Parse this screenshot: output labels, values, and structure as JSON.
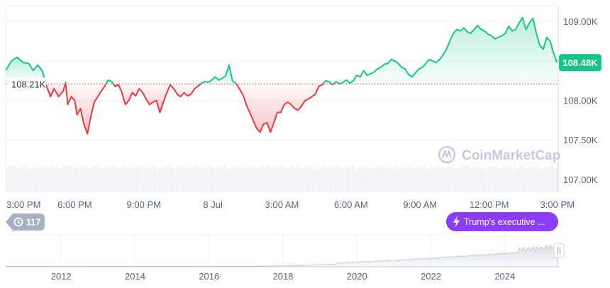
{
  "chart_data": {
    "type": "line",
    "y_axis": {
      "ticks": [
        "109.00K",
        "108.50K",
        "108.00K",
        "107.50K",
        "107.00K"
      ],
      "tick_values": [
        109000,
        108500,
        108000,
        107500,
        107000
      ],
      "ylim": [
        106850,
        109200
      ]
    },
    "x_axis": {
      "ticks": [
        "3:00 PM",
        "6:00 PM",
        "9:00 PM",
        "8 Jul",
        "3:00 AM",
        "6:00 AM",
        "9:00 AM",
        "12:00 PM",
        "3:00 PM"
      ],
      "tick_hours": [
        0,
        3,
        6,
        9,
        12,
        15,
        18,
        21,
        24
      ]
    },
    "reference": {
      "value": 108210,
      "label": "108.21K",
      "style": "dotted",
      "color": "#ea3943"
    },
    "current": {
      "value": 108480,
      "label": "108.48K",
      "color": "#16c784"
    },
    "series": [
      {
        "colors": {
          "above": "#16c784",
          "below": "#ea3943"
        },
        "points": [
          [
            0.0,
            108380
          ],
          [
            0.25,
            108500
          ],
          [
            0.5,
            108550
          ],
          [
            0.75,
            108480
          ],
          [
            1.0,
            108470
          ],
          [
            1.2,
            108380
          ],
          [
            1.4,
            108450
          ],
          [
            1.6,
            108370
          ],
          [
            1.75,
            108200
          ],
          [
            1.95,
            108050
          ],
          [
            2.1,
            108150
          ],
          [
            2.3,
            108050
          ],
          [
            2.5,
            108120
          ],
          [
            2.6,
            108230
          ],
          [
            2.7,
            107950
          ],
          [
            2.85,
            108050
          ],
          [
            3.0,
            108000
          ],
          [
            3.1,
            107820
          ],
          [
            3.25,
            107900
          ],
          [
            3.4,
            107700
          ],
          [
            3.55,
            107580
          ],
          [
            3.7,
            107800
          ],
          [
            3.85,
            107980
          ],
          [
            4.0,
            108050
          ],
          [
            4.15,
            108120
          ],
          [
            4.3,
            108180
          ],
          [
            4.45,
            108260
          ],
          [
            4.6,
            108240
          ],
          [
            4.75,
            108180
          ],
          [
            4.9,
            108200
          ],
          [
            5.05,
            108100
          ],
          [
            5.2,
            107950
          ],
          [
            5.35,
            108000
          ],
          [
            5.5,
            108100
          ],
          [
            5.65,
            108060
          ],
          [
            5.8,
            108150
          ],
          [
            5.95,
            108100
          ],
          [
            6.1,
            108020
          ],
          [
            6.25,
            107950
          ],
          [
            6.4,
            107980
          ],
          [
            6.55,
            108000
          ],
          [
            6.7,
            107850
          ],
          [
            6.85,
            107980
          ],
          [
            7.0,
            108100
          ],
          [
            7.15,
            108200
          ],
          [
            7.3,
            108150
          ],
          [
            7.45,
            108080
          ],
          [
            7.6,
            108050
          ],
          [
            7.75,
            108100
          ],
          [
            7.9,
            108060
          ],
          [
            8.05,
            108080
          ],
          [
            8.2,
            108150
          ],
          [
            8.35,
            108180
          ],
          [
            8.5,
            108220
          ],
          [
            8.65,
            108240
          ],
          [
            8.8,
            108230
          ],
          [
            8.95,
            108260
          ],
          [
            9.1,
            108300
          ],
          [
            9.25,
            108260
          ],
          [
            9.4,
            108280
          ],
          [
            9.55,
            108310
          ],
          [
            9.7,
            108450
          ],
          [
            9.85,
            108250
          ],
          [
            10.0,
            108220
          ],
          [
            10.15,
            108150
          ],
          [
            10.3,
            108080
          ],
          [
            10.45,
            107950
          ],
          [
            10.6,
            107850
          ],
          [
            10.75,
            107750
          ],
          [
            10.9,
            107650
          ],
          [
            11.05,
            107600
          ],
          [
            11.2,
            107700
          ],
          [
            11.35,
            107720
          ],
          [
            11.5,
            107600
          ],
          [
            11.65,
            107720
          ],
          [
            11.8,
            107850
          ],
          [
            11.95,
            107850
          ],
          [
            12.1,
            107950
          ],
          [
            12.25,
            107980
          ],
          [
            12.4,
            107950
          ],
          [
            12.55,
            107900
          ],
          [
            12.7,
            107880
          ],
          [
            12.85,
            107930
          ],
          [
            13.0,
            108000
          ],
          [
            13.15,
            108020
          ],
          [
            13.3,
            108050
          ],
          [
            13.45,
            108080
          ],
          [
            13.6,
            108180
          ],
          [
            13.75,
            108200
          ],
          [
            13.9,
            108250
          ],
          [
            14.05,
            108240
          ],
          [
            14.2,
            108200
          ],
          [
            14.35,
            108240
          ],
          [
            14.5,
            108210
          ],
          [
            14.65,
            108230
          ],
          [
            14.8,
            108260
          ],
          [
            14.95,
            108220
          ],
          [
            15.1,
            108250
          ],
          [
            15.25,
            108320
          ],
          [
            15.4,
            108300
          ],
          [
            15.55,
            108380
          ],
          [
            15.7,
            108320
          ],
          [
            15.85,
            108340
          ],
          [
            16.0,
            108360
          ],
          [
            16.15,
            108400
          ],
          [
            16.3,
            108420
          ],
          [
            16.45,
            108460
          ],
          [
            16.6,
            108470
          ],
          [
            16.75,
            108520
          ],
          [
            16.9,
            108500
          ],
          [
            17.05,
            108470
          ],
          [
            17.2,
            108420
          ],
          [
            17.35,
            108400
          ],
          [
            17.5,
            108330
          ],
          [
            17.65,
            108300
          ],
          [
            17.8,
            108350
          ],
          [
            17.95,
            108400
          ],
          [
            18.1,
            108420
          ],
          [
            18.25,
            108470
          ],
          [
            18.4,
            108520
          ],
          [
            18.55,
            108500
          ],
          [
            18.7,
            108480
          ],
          [
            18.85,
            108520
          ],
          [
            19.0,
            108580
          ],
          [
            19.15,
            108650
          ],
          [
            19.3,
            108760
          ],
          [
            19.45,
            108850
          ],
          [
            19.6,
            108900
          ],
          [
            19.75,
            108880
          ],
          [
            19.9,
            108920
          ],
          [
            20.05,
            108870
          ],
          [
            20.2,
            108850
          ],
          [
            20.35,
            108900
          ],
          [
            20.5,
            108950
          ],
          [
            20.65,
            108900
          ],
          [
            20.8,
            108880
          ],
          [
            20.95,
            108840
          ],
          [
            21.1,
            108820
          ],
          [
            21.25,
            108780
          ],
          [
            21.4,
            108800
          ],
          [
            21.55,
            108820
          ],
          [
            21.7,
            108850
          ],
          [
            21.85,
            108940
          ],
          [
            22.0,
            108880
          ],
          [
            22.15,
            108900
          ],
          [
            22.3,
            108980
          ],
          [
            22.45,
            109050
          ],
          [
            22.6,
            108900
          ],
          [
            22.75,
            108980
          ],
          [
            22.9,
            109040
          ],
          [
            23.05,
            108850
          ],
          [
            23.2,
            108700
          ],
          [
            23.35,
            108650
          ],
          [
            23.5,
            108800
          ],
          [
            23.65,
            108750
          ],
          [
            23.8,
            108600
          ],
          [
            23.95,
            108480
          ]
        ]
      }
    ],
    "volume": {
      "shown": true
    },
    "navigator": {
      "year_labels": [
        "2012",
        "2014",
        "2016",
        "2018",
        "2020",
        "2022",
        "2024"
      ],
      "year_values": [
        2012,
        2014,
        2016,
        2018,
        2020,
        2022,
        2024
      ],
      "range": [
        2010.5,
        2025.5
      ]
    },
    "grid": true
  },
  "watermark": {
    "text": "CoinMarketCap",
    "icon": "coinmarketcap-logo-icon"
  },
  "history_badge": {
    "count": "117",
    "icon": "history-clock-icon"
  },
  "news_pill": {
    "text": "Trump's executive ...",
    "icon": "lightning-icon",
    "color": "#8c3dfc"
  },
  "navigator_handle": {
    "icon": "drag-handle-icon"
  }
}
